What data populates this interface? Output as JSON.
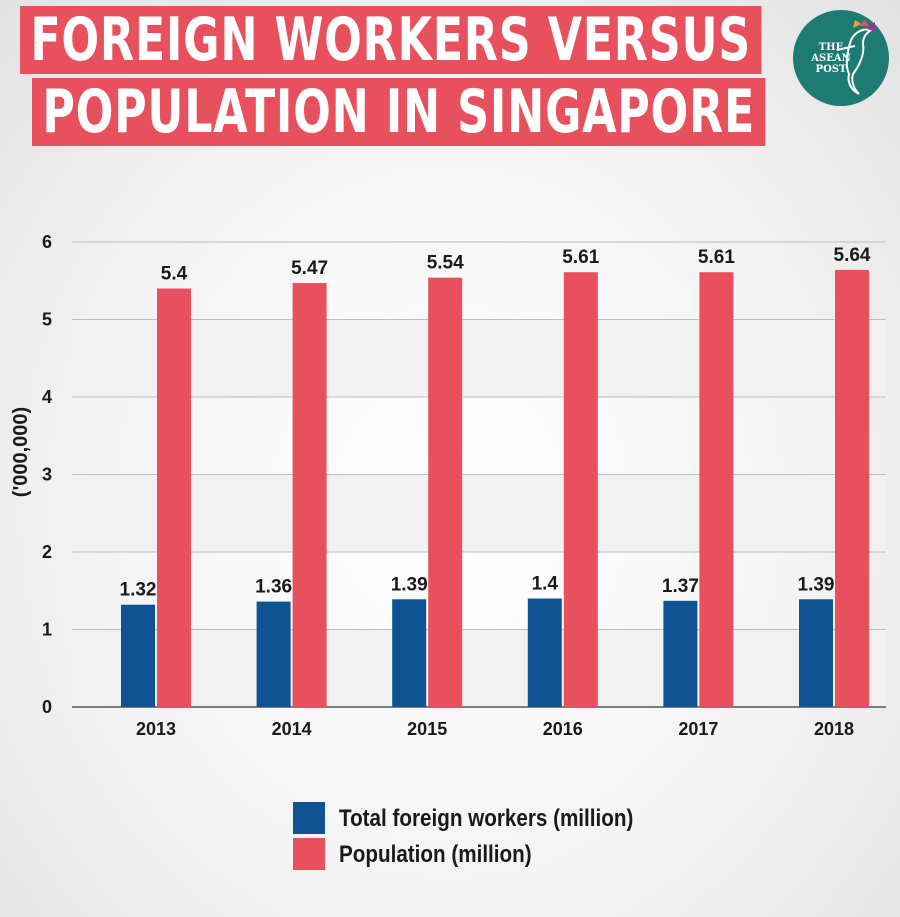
{
  "title": {
    "line1": "FOREIGN WORKERS VERSUS",
    "line2": "POPULATION IN SINGAPORE"
  },
  "logo": {
    "line1": "THE",
    "line2": "ASEAN",
    "line3": "POST",
    "icon": "hummingbird-icon"
  },
  "colors": {
    "workers": "#0f5394",
    "population": "#e8505d",
    "title_bg": "#e8505d",
    "logo_bg": "#1d7b74"
  },
  "chart_data": {
    "type": "bar",
    "categories": [
      "2013",
      "2014",
      "2015",
      "2016",
      "2017",
      "2018"
    ],
    "series": [
      {
        "name": "Total foreign workers (million)",
        "values": [
          1.32,
          1.36,
          1.39,
          1.4,
          1.37,
          1.39
        ],
        "labels": [
          "1.32",
          "1.36",
          "1.39",
          "1.4",
          "1.37",
          "1.39"
        ]
      },
      {
        "name": "Population (million)",
        "values": [
          5.4,
          5.47,
          5.54,
          5.61,
          5.61,
          5.64
        ],
        "labels": [
          "5.4",
          "5.47",
          "5.54",
          "5.61",
          "5.61",
          "5.64"
        ]
      }
    ],
    "ylabel": "('000,000)",
    "ylim": [
      0,
      6
    ],
    "yticks": [
      "0",
      "1",
      "2",
      "3",
      "4",
      "5",
      "6"
    ],
    "grid": true,
    "legend": "bottom"
  }
}
